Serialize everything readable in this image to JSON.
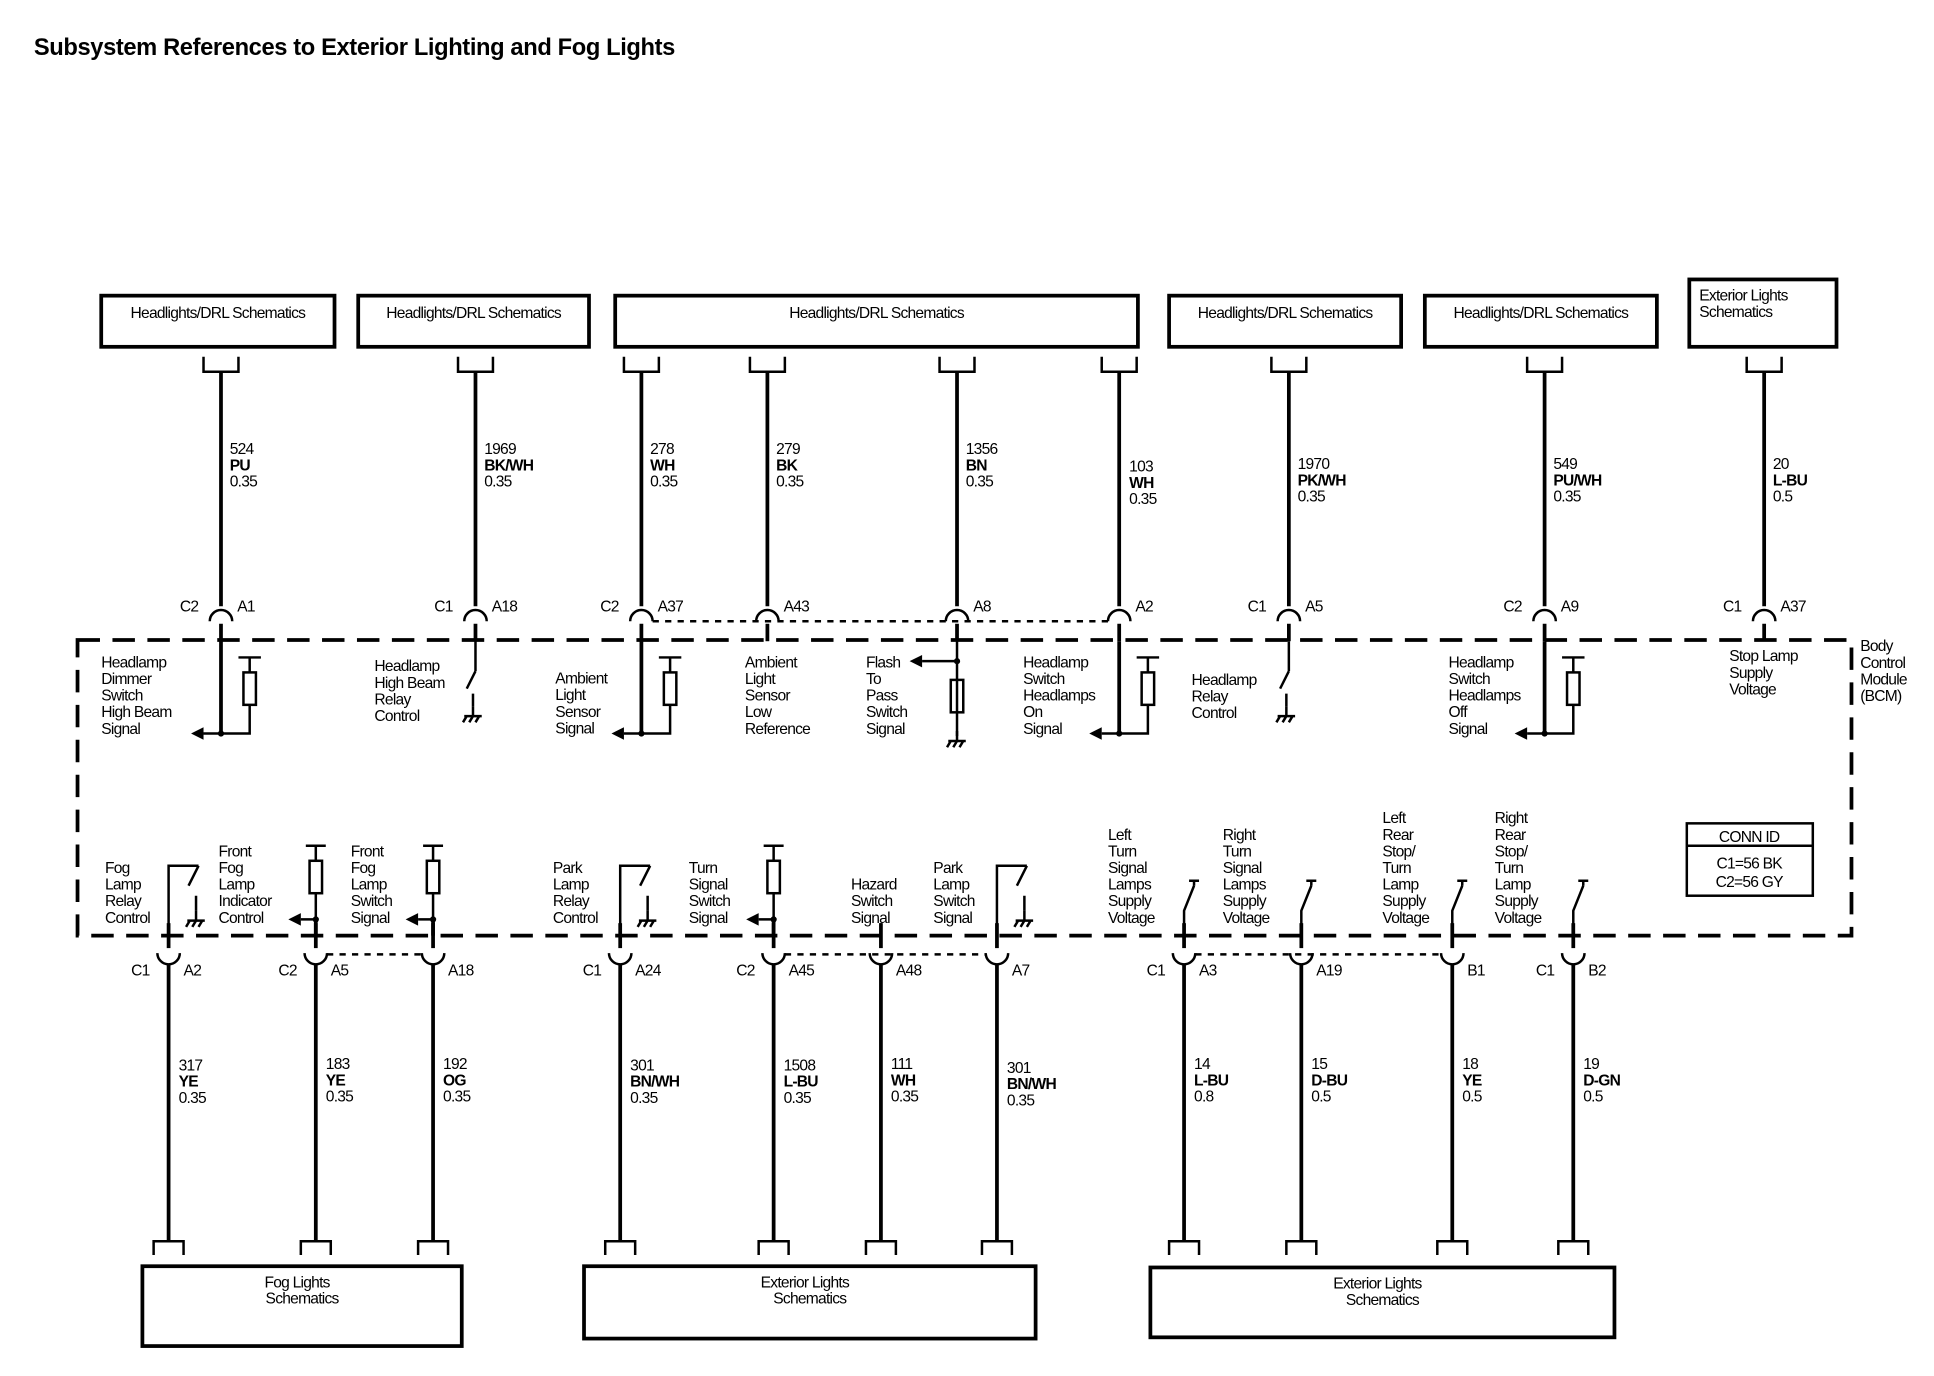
{
  "title": "Subsystem References to Exterior Lighting and Fog Lights",
  "module": {
    "label": [
      "Body",
      "Control",
      "Module",
      "(BCM)"
    ]
  },
  "conn_id": {
    "header": "CONN ID",
    "lines": [
      "C1=56 BK",
      "C2=56 GY"
    ]
  },
  "top_boxes": [
    {
      "label": [
        "Headlights/DRL Schematics"
      ]
    },
    {
      "label": [
        "Headlights/DRL Schematics"
      ]
    },
    {
      "label": [
        "Headlights/DRL Schematics"
      ]
    },
    {
      "label": [
        "Headlights/DRL Schematics"
      ]
    },
    {
      "label": [
        "Headlights/DRL Schematics"
      ]
    },
    {
      "label": [
        "Exterior Lights",
        "Schematics"
      ]
    }
  ],
  "bottom_boxes": [
    {
      "label": [
        "Fog Lights",
        "Schematics"
      ]
    },
    {
      "label": [
        "Exterior Lights",
        "Schematics"
      ]
    },
    {
      "label": [
        "Exterior Lights",
        "Schematics"
      ]
    }
  ],
  "top_circuits": [
    {
      "circuit": "524",
      "color": "PU",
      "gauge": "0.35",
      "connector": "C2",
      "pin": "A1",
      "function": [
        "Headlamp",
        "Dimmer",
        "Switch",
        "High Beam",
        "Signal"
      ],
      "element": "pull-up-input"
    },
    {
      "circuit": "1969",
      "color": "BK/WH",
      "gauge": "0.35",
      "connector": "C1",
      "pin": "A18",
      "function": [
        "Headlamp",
        "High Beam",
        "Relay",
        "Control"
      ],
      "element": "low-side-switch"
    },
    {
      "circuit": "278",
      "color": "WH",
      "gauge": "0.35",
      "connector": "C2",
      "pin": "A37",
      "function": [
        "Ambient",
        "Light",
        "Sensor",
        "Signal"
      ],
      "element": "pull-up-input"
    },
    {
      "circuit": "279",
      "color": "BK",
      "gauge": "0.35",
      "connector": "",
      "pin": "A43",
      "function": [
        "Ambient",
        "Light",
        "Sensor",
        "Low",
        "Reference"
      ],
      "element": "none"
    },
    {
      "circuit": "1356",
      "color": "BN",
      "gauge": "0.35",
      "connector": "",
      "pin": "A8",
      "function": [
        "Flash",
        "To",
        "Pass",
        "Switch",
        "Signal"
      ],
      "element": "pull-down-input"
    },
    {
      "circuit": "103",
      "color": "WH",
      "gauge": "0.35",
      "connector": "",
      "pin": "A2",
      "function": [
        "Headlamp",
        "Switch",
        "Headlamps",
        "On",
        "Signal"
      ],
      "element": "pull-up-input"
    },
    {
      "circuit": "1970",
      "color": "PK/WH",
      "gauge": "0.35",
      "connector": "C1",
      "pin": "A5",
      "function": [
        "Headlamp",
        "Relay",
        "Control"
      ],
      "element": "low-side-switch"
    },
    {
      "circuit": "549",
      "color": "PU/WH",
      "gauge": "0.35",
      "connector": "C2",
      "pin": "A9",
      "function": [
        "Headlamp",
        "Switch",
        "Headlamps",
        "Off",
        "Signal"
      ],
      "element": "pull-up-input"
    },
    {
      "circuit": "20",
      "color": "L-BU",
      "gauge": "0.5",
      "connector": "C1",
      "pin": "A37",
      "function": [
        "Stop Lamp",
        "Supply",
        "Voltage"
      ],
      "element": "none"
    }
  ],
  "bottom_circuits": [
    {
      "circuit": "317",
      "color": "YE",
      "gauge": "0.35",
      "connector": "C1",
      "pin": "A2",
      "function": [
        "Fog",
        "Lamp",
        "Relay",
        "Control"
      ],
      "element": "low-side-switch"
    },
    {
      "circuit": "183",
      "color": "YE",
      "gauge": "0.35",
      "connector": "C2",
      "pin": "A5",
      "function": [
        "Front",
        "Fog",
        "Lamp",
        "Indicator",
        "Control"
      ],
      "element": "pull-up-input"
    },
    {
      "circuit": "192",
      "color": "OG",
      "gauge": "0.35",
      "connector": "",
      "pin": "A18",
      "function": [
        "Front",
        "Fog",
        "Lamp",
        "Switch",
        "Signal"
      ],
      "element": "pull-up-input"
    },
    {
      "circuit": "301",
      "color": "BN/WH",
      "gauge": "0.35",
      "connector": "C1",
      "pin": "A24",
      "function": [
        "Park",
        "Lamp",
        "Relay",
        "Control"
      ],
      "element": "low-side-switch"
    },
    {
      "circuit": "1508",
      "color": "L-BU",
      "gauge": "0.35",
      "connector": "C2",
      "pin": "A45",
      "function": [
        "Turn",
        "Signal",
        "Switch",
        "Signal"
      ],
      "element": "pull-up-input"
    },
    {
      "circuit": "111",
      "color": "WH",
      "gauge": "0.35",
      "connector": "",
      "pin": "A48",
      "function": [
        "Hazard",
        "Switch",
        "Signal"
      ],
      "element": "none"
    },
    {
      "circuit": "301",
      "color": "BN/WH",
      "gauge": "0.35",
      "connector": "",
      "pin": "A7",
      "function": [
        "Park",
        "Lamp",
        "Switch",
        "Signal"
      ],
      "element": "low-side-switch"
    },
    {
      "circuit": "14",
      "color": "L-BU",
      "gauge": "0.8",
      "connector": "C1",
      "pin": "A3",
      "function": [
        "Left",
        "Turn",
        "Signal",
        "Lamps",
        "Supply",
        "Voltage"
      ],
      "element": "high-side-switch"
    },
    {
      "circuit": "15",
      "color": "D-BU",
      "gauge": "0.5",
      "connector": "",
      "pin": "A19",
      "function": [
        "Right",
        "Turn",
        "Signal",
        "Lamps",
        "Supply",
        "Voltage"
      ],
      "element": "high-side-switch"
    },
    {
      "circuit": "18",
      "color": "YE",
      "gauge": "0.5",
      "connector": "",
      "pin": "B1",
      "function": [
        "Left",
        "Rear",
        "Stop/",
        "Turn",
        "Lamp",
        "Supply",
        "Voltage"
      ],
      "element": "high-side-switch"
    },
    {
      "circuit": "19",
      "color": "D-GN",
      "gauge": "0.5",
      "connector": "C1",
      "pin": "B2",
      "function": [
        "Right",
        "Rear",
        "Stop/",
        "Turn",
        "Lamp",
        "Supply",
        "Voltage"
      ],
      "element": "high-side-switch"
    }
  ]
}
